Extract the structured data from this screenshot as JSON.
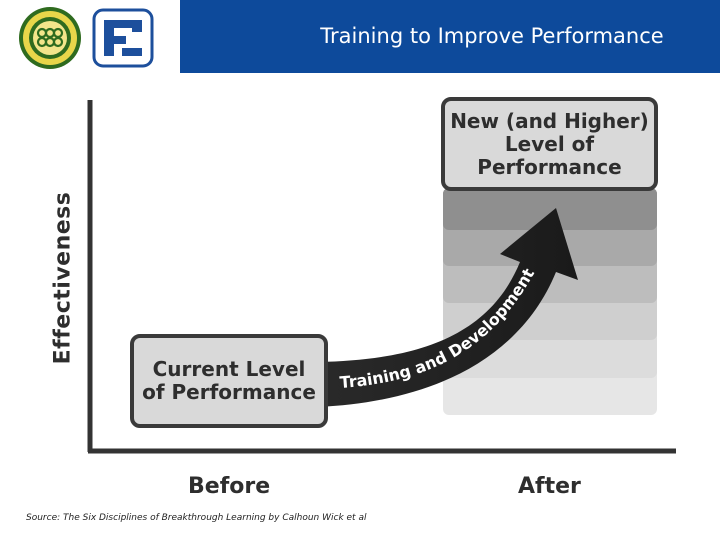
{
  "header": {
    "title": "Training to Improve Performance",
    "logos": [
      "seal-logo",
      "fz-logo"
    ],
    "band_color": "#0d4a9b"
  },
  "diagram": {
    "y_axis_label": "Effectiveness",
    "x_labels": {
      "before": "Before",
      "after": "After"
    },
    "current_box": [
      "Current Level",
      "of Performance"
    ],
    "new_box": [
      "New (and Higher)",
      "Level of",
      "Performance"
    ],
    "arrow_label": "Training and Development"
  },
  "footer": {
    "source": "Source: The Six Disciplines of Breakthrough Learning by Calhoun Wick et al"
  }
}
